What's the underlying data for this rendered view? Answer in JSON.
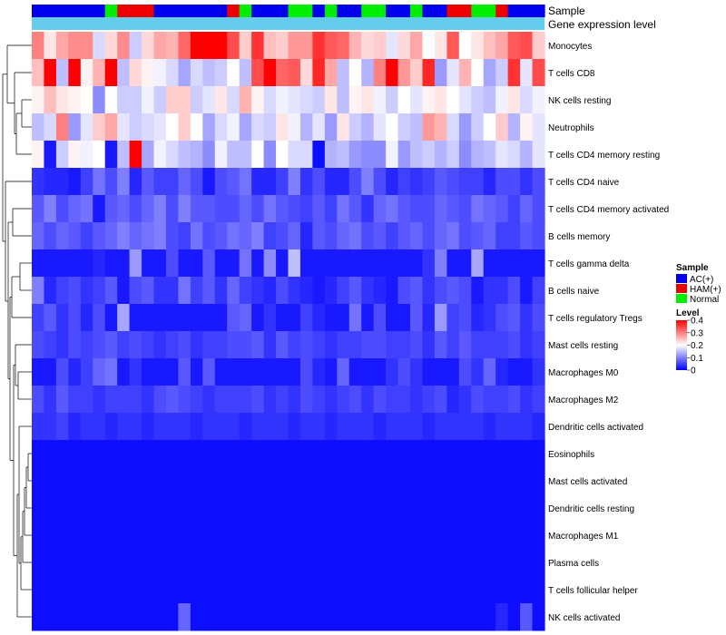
{
  "chart_data": {
    "type": "heatmap",
    "title": "",
    "annotation_tracks": [
      "Sample",
      "Gene expression level"
    ],
    "sample_groups": [
      "AC(+)",
      "AC(+)",
      "AC(+)",
      "AC(+)",
      "AC(+)",
      "AC(+)",
      "Normal",
      "HAM(+)",
      "HAM(+)",
      "HAM(+)",
      "AC(+)",
      "AC(+)",
      "AC(+)",
      "AC(+)",
      "AC(+)",
      "AC(+)",
      "HAM(+)",
      "Normal",
      "AC(+)",
      "AC(+)",
      "AC(+)",
      "Normal",
      "Normal",
      "AC(+)",
      "Normal",
      "AC(+)",
      "AC(+)",
      "Normal",
      "Normal",
      "AC(+)",
      "AC(+)",
      "Normal",
      "AC(+)",
      "AC(+)",
      "HAM(+)",
      "HAM(+)",
      "Normal",
      "Normal",
      "HAM(+)",
      "AC(+)",
      "AC(+)",
      "AC(+)"
    ],
    "rows": [
      "Monocytes",
      "T cells CD8",
      "NK cells resting",
      "Neutrophils",
      "T cells CD4 memory resting",
      "T cells CD4 naive",
      "T cells CD4 memory activated",
      "B cells memory",
      "T cells gamma delta",
      "B cells naive",
      "T cells regulatory  Tregs",
      "Mast cells resting",
      "Macrophages M0",
      "Macrophages M2",
      "Dendritic cells activated",
      "Eosinophils",
      "Mast cells activated",
      "Dendritic cells resting",
      "Macrophages M1",
      "Plasma cells",
      "T cells follicular helper",
      "NK cells activated"
    ],
    "values": [
      [
        0.3,
        0.22,
        0.27,
        0.29,
        0.29,
        0.17,
        0.23,
        0.29,
        0.16,
        0.23,
        0.27,
        0.26,
        0.32,
        0.41,
        0.4,
        0.42,
        0.34,
        0.24,
        0.36,
        0.25,
        0.24,
        0.28,
        0.28,
        0.36,
        0.33,
        0.32,
        0.26,
        0.23,
        0.24,
        0.18,
        0.23,
        0.27,
        0.2,
        0.22,
        0.33,
        0.2,
        0.22,
        0.25,
        0.27,
        0.33,
        0.34,
        0.24
      ],
      [
        0.25,
        0.4,
        0.15,
        0.4,
        0.21,
        0.26,
        0.4,
        0.15,
        0.23,
        0.21,
        0.19,
        0.17,
        0.13,
        0.17,
        0.15,
        0.16,
        0.2,
        0.15,
        0.34,
        0.4,
        0.32,
        0.33,
        0.23,
        0.37,
        0.27,
        0.15,
        0.2,
        0.14,
        0.3,
        0.4,
        0.28,
        0.24,
        0.37,
        0.12,
        0.18,
        0.26,
        0.2,
        0.13,
        0.16,
        0.36,
        0.18,
        0.34
      ],
      [
        0.21,
        0.25,
        0.22,
        0.21,
        0.2,
        0.11,
        0.2,
        0.16,
        0.16,
        0.19,
        0.16,
        0.24,
        0.24,
        0.16,
        0.18,
        0.22,
        0.17,
        0.26,
        0.21,
        0.17,
        0.19,
        0.18,
        0.17,
        0.16,
        0.22,
        0.15,
        0.21,
        0.22,
        0.19,
        0.16,
        0.2,
        0.18,
        0.21,
        0.22,
        0.2,
        0.18,
        0.16,
        0.15,
        0.19,
        0.22,
        0.17,
        0.19
      ],
      [
        0.15,
        0.17,
        0.3,
        0.12,
        0.18,
        0.24,
        0.27,
        0.18,
        0.16,
        0.17,
        0.18,
        0.2,
        0.24,
        0.2,
        0.13,
        0.17,
        0.19,
        0.13,
        0.17,
        0.16,
        0.22,
        0.19,
        0.14,
        0.18,
        0.12,
        0.22,
        0.16,
        0.14,
        0.18,
        0.2,
        0.16,
        0.15,
        0.28,
        0.26,
        0.17,
        0.12,
        0.16,
        0.2,
        0.24,
        0.14,
        0.21,
        0.18
      ],
      [
        0.21,
        0.02,
        0.16,
        0.21,
        0.19,
        0.2,
        0.02,
        0.15,
        0.4,
        0.13,
        0.19,
        0.17,
        0.15,
        0.14,
        0.11,
        0.19,
        0.15,
        0.15,
        0.2,
        0.11,
        0.2,
        0.17,
        0.17,
        0.01,
        0.14,
        0.15,
        0.12,
        0.11,
        0.11,
        0.19,
        0.12,
        0.15,
        0.16,
        0.14,
        0.16,
        0.11,
        0.14,
        0.15,
        0.18,
        0.17,
        0.14,
        0.18
      ],
      [
        0.04,
        0.03,
        0.03,
        0.02,
        0.05,
        0.09,
        0.06,
        0.1,
        0.03,
        0.07,
        0.05,
        0.05,
        0.08,
        0.06,
        0.02,
        0.06,
        0.07,
        0.09,
        0.03,
        0.03,
        0.05,
        0.1,
        0.04,
        0.06,
        0.03,
        0.03,
        0.06,
        0.1,
        0.06,
        0.03,
        0.05,
        0.04,
        0.05,
        0.07,
        0.06,
        0.05,
        0.05,
        0.03,
        0.06,
        0.06,
        0.04,
        0.06
      ],
      [
        0.07,
        0.1,
        0.06,
        0.08,
        0.09,
        0.02,
        0.07,
        0.08,
        0.06,
        0.08,
        0.1,
        0.06,
        0.1,
        0.07,
        0.07,
        0.06,
        0.06,
        0.08,
        0.06,
        0.09,
        0.07,
        0.06,
        0.05,
        0.07,
        0.05,
        0.09,
        0.07,
        0.04,
        0.08,
        0.09,
        0.07,
        0.06,
        0.06,
        0.08,
        0.07,
        0.06,
        0.09,
        0.08,
        0.07,
        0.05,
        0.08,
        0.06
      ],
      [
        0.08,
        0.06,
        0.08,
        0.07,
        0.05,
        0.07,
        0.08,
        0.1,
        0.08,
        0.09,
        0.1,
        0.06,
        0.05,
        0.09,
        0.06,
        0.07,
        0.09,
        0.08,
        0.1,
        0.05,
        0.06,
        0.08,
        0.03,
        0.07,
        0.06,
        0.08,
        0.09,
        0.06,
        0.07,
        0.05,
        0.07,
        0.08,
        0.06,
        0.08,
        0.09,
        0.06,
        0.07,
        0.08,
        0.05,
        0.05,
        0.07,
        0.06
      ],
      [
        0.02,
        0.02,
        0.02,
        0.02,
        0.02,
        0.03,
        0.02,
        0.02,
        0.12,
        0.02,
        0.02,
        0.06,
        0.02,
        0.02,
        0.07,
        0.02,
        0.02,
        0.09,
        0.02,
        0.11,
        0.02,
        0.15,
        0.02,
        0.02,
        0.02,
        0.02,
        0.02,
        0.02,
        0.02,
        0.02,
        0.02,
        0.02,
        0.04,
        0.1,
        0.02,
        0.02,
        0.13,
        0.02,
        0.02,
        0.02,
        0.02,
        0.02
      ],
      [
        0.1,
        0.03,
        0.05,
        0.06,
        0.04,
        0.05,
        0.07,
        0.02,
        0.06,
        0.07,
        0.04,
        0.04,
        0.09,
        0.05,
        0.07,
        0.04,
        0.08,
        0.05,
        0.04,
        0.03,
        0.06,
        0.04,
        0.03,
        0.02,
        0.03,
        0.05,
        0.07,
        0.04,
        0.03,
        0.02,
        0.06,
        0.07,
        0.04,
        0.06,
        0.07,
        0.06,
        0.02,
        0.04,
        0.04,
        0.06,
        0.02,
        0.05
      ],
      [
        0.05,
        0.07,
        0.04,
        0.06,
        0.03,
        0.06,
        0.02,
        0.13,
        0.02,
        0.02,
        0.02,
        0.02,
        0.02,
        0.02,
        0.02,
        0.02,
        0.07,
        0.08,
        0.02,
        0.04,
        0.02,
        0.02,
        0.05,
        0.03,
        0.02,
        0.02,
        0.09,
        0.02,
        0.06,
        0.02,
        0.02,
        0.07,
        0.03,
        0.12,
        0.05,
        0.06,
        0.03,
        0.04,
        0.06,
        0.07,
        0.04,
        0.06
      ],
      [
        0.06,
        0.05,
        0.04,
        0.06,
        0.05,
        0.06,
        0.07,
        0.05,
        0.06,
        0.05,
        0.04,
        0.05,
        0.06,
        0.04,
        0.05,
        0.05,
        0.06,
        0.06,
        0.07,
        0.04,
        0.07,
        0.05,
        0.06,
        0.05,
        0.04,
        0.05,
        0.05,
        0.06,
        0.06,
        0.05,
        0.05,
        0.06,
        0.04,
        0.07,
        0.05,
        0.07,
        0.05,
        0.05,
        0.05,
        0.06,
        0.04,
        0.05
      ],
      [
        0.02,
        0.02,
        0.06,
        0.03,
        0.05,
        0.08,
        0.09,
        0.02,
        0.04,
        0.02,
        0.02,
        0.02,
        0.07,
        0.02,
        0.07,
        0.02,
        0.02,
        0.02,
        0.02,
        0.02,
        0.02,
        0.02,
        0.06,
        0.03,
        0.02,
        0.08,
        0.02,
        0.02,
        0.02,
        0.04,
        0.06,
        0.04,
        0.02,
        0.02,
        0.02,
        0.06,
        0.04,
        0.08,
        0.03,
        0.02,
        0.02,
        0.04
      ],
      [
        0.06,
        0.04,
        0.07,
        0.05,
        0.05,
        0.04,
        0.05,
        0.05,
        0.05,
        0.04,
        0.06,
        0.07,
        0.06,
        0.05,
        0.04,
        0.05,
        0.05,
        0.05,
        0.06,
        0.04,
        0.05,
        0.04,
        0.06,
        0.05,
        0.04,
        0.05,
        0.06,
        0.04,
        0.06,
        0.05,
        0.05,
        0.04,
        0.05,
        0.06,
        0.03,
        0.04,
        0.06,
        0.05,
        0.05,
        0.06,
        0.04,
        0.05
      ],
      [
        0.04,
        0.04,
        0.05,
        0.03,
        0.04,
        0.04,
        0.03,
        0.04,
        0.04,
        0.03,
        0.04,
        0.04,
        0.04,
        0.03,
        0.04,
        0.04,
        0.04,
        0.03,
        0.04,
        0.04,
        0.04,
        0.03,
        0.04,
        0.04,
        0.03,
        0.04,
        0.04,
        0.04,
        0.03,
        0.04,
        0.04,
        0.04,
        0.03,
        0.04,
        0.04,
        0.04,
        0.04,
        0.03,
        0.04,
        0.04,
        0.04,
        0.03
      ],
      [
        0.01,
        0.01,
        0.01,
        0.01,
        0.01,
        0.01,
        0.01,
        0.01,
        0.01,
        0.01,
        0.01,
        0.01,
        0.01,
        0.01,
        0.01,
        0.01,
        0.01,
        0.01,
        0.01,
        0.01,
        0.01,
        0.01,
        0.01,
        0.01,
        0.01,
        0.01,
        0.01,
        0.01,
        0.01,
        0.01,
        0.01,
        0.01,
        0.01,
        0.01,
        0.01,
        0.01,
        0.01,
        0.01,
        0.01,
        0.01,
        0.01,
        0.01
      ],
      [
        0.01,
        0.01,
        0.01,
        0.01,
        0.01,
        0.01,
        0.01,
        0.01,
        0.01,
        0.01,
        0.01,
        0.01,
        0.01,
        0.01,
        0.01,
        0.01,
        0.01,
        0.01,
        0.01,
        0.01,
        0.01,
        0.01,
        0.01,
        0.01,
        0.01,
        0.01,
        0.01,
        0.01,
        0.01,
        0.01,
        0.01,
        0.01,
        0.01,
        0.01,
        0.01,
        0.01,
        0.01,
        0.01,
        0.01,
        0.01,
        0.01,
        0.01
      ],
      [
        0.01,
        0.01,
        0.01,
        0.01,
        0.01,
        0.01,
        0.01,
        0.01,
        0.01,
        0.01,
        0.01,
        0.01,
        0.01,
        0.01,
        0.01,
        0.01,
        0.01,
        0.01,
        0.01,
        0.01,
        0.01,
        0.01,
        0.01,
        0.01,
        0.01,
        0.01,
        0.01,
        0.01,
        0.01,
        0.01,
        0.01,
        0.01,
        0.01,
        0.01,
        0.01,
        0.01,
        0.01,
        0.01,
        0.01,
        0.01,
        0.01,
        0.01
      ],
      [
        0.01,
        0.01,
        0.01,
        0.01,
        0.01,
        0.01,
        0.01,
        0.01,
        0.01,
        0.01,
        0.01,
        0.01,
        0.01,
        0.01,
        0.01,
        0.01,
        0.01,
        0.01,
        0.01,
        0.01,
        0.01,
        0.01,
        0.01,
        0.01,
        0.01,
        0.01,
        0.01,
        0.01,
        0.01,
        0.01,
        0.01,
        0.01,
        0.01,
        0.01,
        0.01,
        0.01,
        0.01,
        0.01,
        0.01,
        0.01,
        0.01,
        0.01
      ],
      [
        0.01,
        0.01,
        0.01,
        0.01,
        0.01,
        0.01,
        0.01,
        0.01,
        0.01,
        0.01,
        0.01,
        0.01,
        0.01,
        0.01,
        0.01,
        0.01,
        0.01,
        0.01,
        0.01,
        0.01,
        0.01,
        0.01,
        0.01,
        0.01,
        0.01,
        0.01,
        0.01,
        0.01,
        0.01,
        0.01,
        0.01,
        0.01,
        0.01,
        0.01,
        0.01,
        0.01,
        0.01,
        0.01,
        0.01,
        0.01,
        0.01,
        0.01
      ],
      [
        0.01,
        0.01,
        0.01,
        0.01,
        0.01,
        0.01,
        0.01,
        0.01,
        0.01,
        0.01,
        0.01,
        0.01,
        0.01,
        0.01,
        0.01,
        0.01,
        0.01,
        0.01,
        0.01,
        0.01,
        0.01,
        0.01,
        0.01,
        0.01,
        0.01,
        0.01,
        0.01,
        0.01,
        0.01,
        0.01,
        0.01,
        0.01,
        0.01,
        0.01,
        0.01,
        0.01,
        0.01,
        0.01,
        0.01,
        0.01,
        0.01,
        0.01
      ],
      [
        0.01,
        0.01,
        0.01,
        0.01,
        0.01,
        0.01,
        0.01,
        0.01,
        0.01,
        0.01,
        0.01,
        0.01,
        0.08,
        0.01,
        0.01,
        0.01,
        0.01,
        0.01,
        0.01,
        0.01,
        0.01,
        0.01,
        0.01,
        0.01,
        0.01,
        0.01,
        0.01,
        0.01,
        0.01,
        0.01,
        0.01,
        0.01,
        0.01,
        0.01,
        0.01,
        0.01,
        0.01,
        0.01,
        0.03,
        0.01,
        0.07,
        0.01
      ]
    ],
    "legend": {
      "sample": {
        "title": "Sample",
        "entries": [
          {
            "label": "AC(+)",
            "color": "#0000ee"
          },
          {
            "label": "HAM(+)",
            "color": "#ee0000"
          },
          {
            "label": "Normal",
            "color": "#00ee00"
          }
        ]
      },
      "level": {
        "title": "Level",
        "ticks": [
          "0.4",
          "0.3",
          "0.2",
          "0.1",
          "0"
        ],
        "tick_values": [
          0.4,
          0.3,
          0.2,
          0.1,
          0
        ],
        "range": [
          0,
          0.4
        ],
        "low_color": "#0000ff",
        "mid_color": "#ffffff",
        "high_color": "#ff0000"
      }
    },
    "gene_expression_color": "#66ccee",
    "placement": "legend right"
  }
}
